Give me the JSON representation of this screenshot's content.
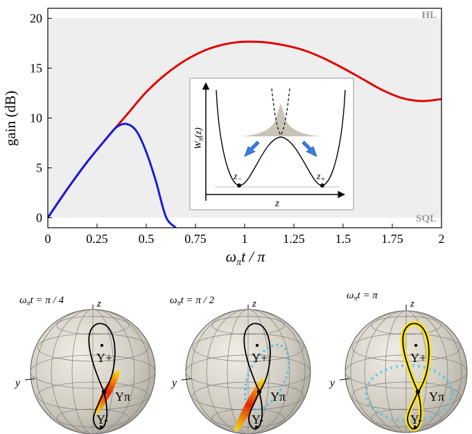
{
  "chart_data": {
    "type": "line",
    "ylabel": "gain (dB)",
    "xlabel_main": "ω",
    "xlabel_sub": "π",
    "xlabel_rest": "t / π",
    "xlim": [
      0,
      2
    ],
    "ylim": [
      -1,
      21
    ],
    "x_ticks": [
      "0",
      "0.25",
      "0.5",
      "0.75",
      "1",
      "1.25",
      "1.5",
      "1.75",
      "2"
    ],
    "y_ticks": [
      "0",
      "5",
      "10",
      "15",
      "20"
    ],
    "shaded_band": [
      0,
      20
    ],
    "band_top_label": "HL",
    "band_bottom_label": "SQL",
    "colors": {
      "red_curve": "#e00000",
      "blue_curve": "#1a1ad8",
      "band": "#eeeeee"
    },
    "series": [
      {
        "color": "#e00000",
        "x": [
          0,
          0.1,
          0.2,
          0.3,
          0.4,
          0.5,
          0.6,
          0.7,
          0.8,
          0.9,
          1.0,
          1.1,
          1.2,
          1.3,
          1.4,
          1.5,
          1.6,
          1.7,
          1.8,
          1.9,
          2.0
        ],
        "y": [
          0,
          2.9,
          5.6,
          8.0,
          10.3,
          12.6,
          14.4,
          15.8,
          16.8,
          17.4,
          17.65,
          17.6,
          17.3,
          16.8,
          16.0,
          15.0,
          13.9,
          12.8,
          12.0,
          11.7,
          11.9
        ]
      },
      {
        "color": "#1a1ad8",
        "x": [
          0,
          0.1,
          0.2,
          0.3,
          0.35,
          0.4,
          0.45,
          0.5,
          0.55,
          0.6,
          0.65
        ],
        "y": [
          0,
          2.9,
          5.6,
          8.0,
          9.1,
          9.4,
          8.7,
          6.6,
          3.6,
          0.1,
          -1.0
        ]
      }
    ]
  },
  "inset": {
    "y_axis_main": "W",
    "y_axis_sub": "π",
    "y_axis_arg": "(z)",
    "x_axis": "z",
    "minus_label_main": "z",
    "minus_label_sub": "−",
    "plus_label_main": "z",
    "plus_label_sub": "+"
  },
  "spheres": [
    {
      "time_main": "ω",
      "time_sub": "π",
      "time_rest": "t = π / 4",
      "axis_z": "z",
      "axis_y": "y",
      "label_plus": "Υ+",
      "label_pi": "Υπ",
      "label_minus": "Υ-"
    },
    {
      "time_main": "ω",
      "time_sub": "π",
      "time_rest": "t = π / 2",
      "axis_z": "z",
      "axis_y": "y",
      "label_plus": "Υ+",
      "label_pi": "Υπ",
      "label_minus": "Υ-"
    },
    {
      "time_main": "ω",
      "time_sub": "π",
      "time_rest": "t = π",
      "axis_z": "z",
      "axis_y": "y",
      "label_plus": "Υ+",
      "label_pi": "Υπ",
      "label_minus": "Υ-"
    }
  ]
}
